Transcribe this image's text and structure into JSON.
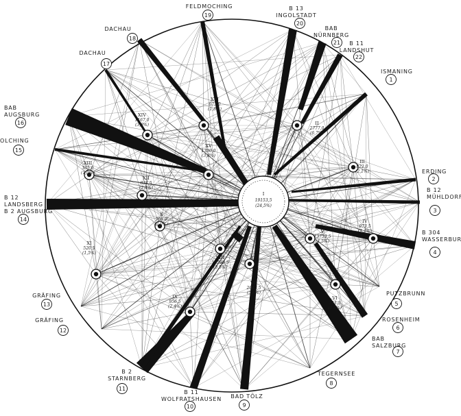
{
  "diagram": {
    "style": {
      "ink": "#111111",
      "paper": "#ffffff",
      "ring_fill": "#f4f4f4"
    },
    "center_zone": {
      "id": "I",
      "value": "19153,5",
      "share": "(24,5%)"
    },
    "zones": [
      {
        "id": "II",
        "value": "2777,0",
        "share": "(6,7%)"
      },
      {
        "id": "III",
        "value": "822,0",
        "share": "(2,1%)"
      },
      {
        "id": "IV",
        "value": "973,5",
        "share": "(1,1%)"
      },
      {
        "id": "V",
        "value": "13753,5",
        "share": "(4,5%)"
      },
      {
        "id": "VI",
        "value": "311,5",
        "share": "(0,9%)"
      },
      {
        "id": "VII",
        "value": "2043,5",
        "share": "(5,8%)"
      },
      {
        "id": "VIII",
        "value": "17593,5",
        "share": "(3,5%)"
      },
      {
        "id": "IX",
        "value": "956,5",
        "share": "(2,4%)"
      },
      {
        "id": "X",
        "value": "708,0",
        "share": "(2,0%)"
      },
      {
        "id": "XI",
        "value": "520,5",
        "share": "(1,5%)"
      },
      {
        "id": "XII",
        "value": "834,5",
        "share": "(2,4%)"
      },
      {
        "id": "XIII",
        "value": "365,0",
        "share": "(1,0%)"
      },
      {
        "id": "XIV",
        "value": "1167,0",
        "share": "(3,8%)"
      },
      {
        "id": "XV",
        "value": "1330,0",
        "share": "(3,8%)"
      },
      {
        "id": "XVI",
        "value": "673,0",
        "share": "(1,8%)"
      }
    ],
    "periphery": [
      {
        "num": "1",
        "label": "ISMANING"
      },
      {
        "num": "2",
        "label": "ERDING"
      },
      {
        "num": "3",
        "label": "B 12 MÜHLDORF"
      },
      {
        "num": "4",
        "label": "B 304 WASSERBURG"
      },
      {
        "num": "5",
        "label": "PUTZBRUNN"
      },
      {
        "num": "6",
        "label": "ROSENHEIM"
      },
      {
        "num": "7",
        "label": "BAB SALZBURG"
      },
      {
        "num": "8",
        "label": "TEGERNSEE"
      },
      {
        "num": "9",
        "label": "BAD TÖLZ"
      },
      {
        "num": "10",
        "label": "B 11 WOLFRATSHAUSEN"
      },
      {
        "num": "11",
        "label": "B 2 STARNBERG"
      },
      {
        "num": "12",
        "label": "GRÄFING"
      },
      {
        "num": "13",
        "label": "GRÄFING"
      },
      {
        "num": "14",
        "label": "B 12 LANDSBERG B 2 AUGSBURG"
      },
      {
        "num": "15",
        "label": "OLCHING"
      },
      {
        "num": "16",
        "label": "BAB AUGSBURG"
      },
      {
        "num": "17",
        "label": "DACHAU"
      },
      {
        "num": "18",
        "label": "DACHAU"
      },
      {
        "num": "19",
        "label": "FELDMOCHING"
      },
      {
        "num": "20",
        "label": "B 13 INGOLSTADT"
      },
      {
        "num": "21",
        "label": "BAB NÜRNBERG"
      },
      {
        "num": "22",
        "label": "B 11 LANDSHUT"
      }
    ]
  }
}
